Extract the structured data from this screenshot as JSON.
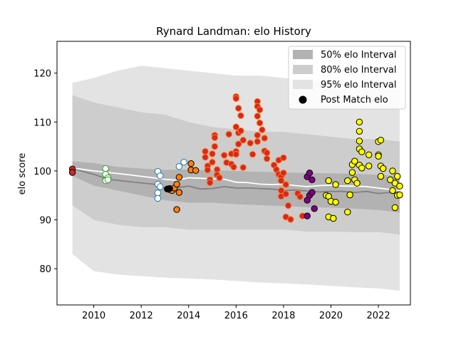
{
  "chart_data": {
    "type": "scatter",
    "title": "Rynard Landman: elo History",
    "xlabel": "",
    "ylabel": "elo score",
    "xlim": [
      2008.45,
      2023.35
    ],
    "ylim": [
      72.6,
      126.5
    ],
    "xticks": [
      2010,
      2012,
      2014,
      2016,
      2018,
      2020,
      2022
    ],
    "yticks": [
      80,
      90,
      100,
      110,
      120
    ],
    "grid": false,
    "legend_position": "top-right",
    "legend": [
      {
        "label": "50% elo Interval",
        "kind": "band",
        "color": "#b2b2b2"
      },
      {
        "label": "80% elo Interval",
        "kind": "band",
        "color": "#cdcdcd"
      },
      {
        "label": "95% elo Interval",
        "kind": "band",
        "color": "#e3e3e3"
      },
      {
        "label": "Post Match elo",
        "kind": "marker",
        "color": "#000000"
      }
    ],
    "colors": {
      "band95": "#e3e3e3",
      "band80": "#cdcdcd",
      "band50": "#b2b2b2",
      "median_line": "#808080",
      "mean_line": "#ffffff"
    },
    "median_line": {
      "x": [
        2009.1,
        2010.0,
        2010.6,
        2011.5,
        2012.5,
        2013.0,
        2013.5,
        2014.0,
        2014.5,
        2015.0,
        2015.5,
        2016.0,
        2016.5,
        2017.0,
        2017.5,
        2018.0,
        2018.5,
        2019.0,
        2019.5,
        2020.0,
        2020.5,
        2021.0,
        2021.5,
        2022.0,
        2022.5,
        2022.9
      ],
      "y": [
        100.5,
        99.3,
        98.3,
        97.8,
        97.3,
        96.5,
        96.6,
        96.9,
        96.3,
        96.4,
        96.8,
        96.5,
        96.5,
        96.4,
        96.3,
        96.0,
        96.1,
        95.9,
        95.7,
        95.8,
        95.8,
        95.6,
        95.8,
        95.4,
        95.6,
        95.3
      ]
    },
    "mean_line": {
      "x": [
        2009.1,
        2010.0,
        2010.6,
        2011.5,
        2012.5,
        2013.0,
        2013.5,
        2014.0,
        2014.5,
        2015.0,
        2015.5,
        2016.0,
        2016.5,
        2017.0,
        2017.5,
        2018.0,
        2018.5,
        2019.0,
        2019.5,
        2020.0,
        2020.5,
        2021.0,
        2021.5,
        2022.0,
        2022.5,
        2022.9
      ],
      "y": [
        100.6,
        100.0,
        99.7,
        99.2,
        98.6,
        98.3,
        98.1,
        98.6,
        98.5,
        98.4,
        98.3,
        97.7,
        97.6,
        97.3,
        97.2,
        97.3,
        97.0,
        96.8,
        97.0,
        97.1,
        96.9,
        96.9,
        96.8,
        96.5,
        96.2,
        96.0
      ]
    },
    "band50": {
      "x": [
        2009.1,
        2010.0,
        2011.0,
        2012.0,
        2013.0,
        2014.0,
        2015.0,
        2016.0,
        2017.0,
        2018.0,
        2019.0,
        2020.0,
        2021.0,
        2022.0,
        2022.9
      ],
      "lower": [
        99.0,
        97.0,
        96.0,
        95.0,
        94.0,
        93.5,
        93.5,
        93.2,
        93.0,
        92.8,
        92.6,
        92.5,
        92.3,
        92.0,
        91.5
      ],
      "upper": [
        102.0,
        101.6,
        100.8,
        100.5,
        100.2,
        100.3,
        100.1,
        100.0,
        99.8,
        99.7,
        99.6,
        99.5,
        99.4,
        99.2,
        99.0
      ]
    },
    "band80": {
      "x": [
        2009.1,
        2010.0,
        2011.0,
        2012.0,
        2013.0,
        2014.0,
        2015.0,
        2016.0,
        2017.0,
        2018.0,
        2019.0,
        2020.0,
        2021.0,
        2022.0,
        2022.9
      ],
      "lower": [
        93.0,
        90.0,
        89.0,
        88.5,
        88.5,
        88.0,
        88.0,
        88.0,
        88.0,
        88.0,
        87.6,
        87.6,
        87.5,
        87.5,
        87.0
      ],
      "upper": [
        115.5,
        114.0,
        113.0,
        112.0,
        111.5,
        110.0,
        109.0,
        108.5,
        108.0,
        108.0,
        107.5,
        107.0,
        106.5,
        106.5,
        106.0
      ]
    },
    "band95": {
      "x": [
        2009.1,
        2010.0,
        2011.0,
        2012.0,
        2013.0,
        2014.0,
        2015.0,
        2016.0,
        2017.0,
        2018.0,
        2019.0,
        2020.0,
        2021.0,
        2022.0,
        2022.9
      ],
      "lower": [
        83.0,
        79.5,
        78.8,
        78.5,
        78.2,
        78.0,
        77.8,
        77.5,
        77.2,
        77.0,
        76.8,
        76.5,
        76.2,
        76.0,
        75.5
      ],
      "upper": [
        118.0,
        119.0,
        120.5,
        121.5,
        121.0,
        120.5,
        120.0,
        119.5,
        119.5,
        119.0,
        118.5,
        118.0,
        117.5,
        117.0,
        116.5
      ]
    },
    "series": [
      {
        "color": "#d62728",
        "edge": "#000000",
        "points": [
          [
            2009.1,
            100.4
          ],
          [
            2009.1,
            99.7
          ]
        ]
      },
      {
        "color": "#ffffff",
        "edge": "#2ca02c",
        "points": [
          [
            2010.5,
            100.5
          ],
          [
            2010.5,
            99.3
          ],
          [
            2010.6,
            98.6
          ],
          [
            2010.5,
            98.0
          ],
          [
            2010.6,
            98.2
          ]
        ]
      },
      {
        "color": "#ffffff",
        "edge": "#1f77b4",
        "points": [
          [
            2012.7,
            99.9
          ],
          [
            2012.8,
            99.0
          ],
          [
            2012.7,
            97.3
          ],
          [
            2012.8,
            96.8
          ],
          [
            2012.7,
            95.5
          ],
          [
            2012.7,
            94.4
          ],
          [
            2013.6,
            100.9
          ],
          [
            2013.8,
            101.8
          ]
        ]
      },
      {
        "color": "#ff7f0e",
        "edge": "#000000",
        "points": [
          [
            2013.2,
            96.2
          ],
          [
            2013.3,
            96.0
          ],
          [
            2013.4,
            96.5
          ],
          [
            2013.5,
            97.3
          ],
          [
            2013.6,
            95.6
          ],
          [
            2013.5,
            92.1
          ],
          [
            2013.6,
            98.7
          ],
          [
            2014.1,
            101.5
          ],
          [
            2014.1,
            100.2
          ],
          [
            2014.3,
            100.1
          ]
        ]
      },
      {
        "color": "#000000",
        "edge": "#000000",
        "points": [
          [
            2013.1,
            96.3
          ],
          [
            2013.2,
            96.4
          ]
        ]
      },
      {
        "color": "#d62728",
        "edge": "#ff7f0e",
        "points": [
          [
            2014.7,
            104.0
          ],
          [
            2014.7,
            102.8
          ],
          [
            2014.8,
            101.0
          ],
          [
            2014.8,
            100.2
          ],
          [
            2014.9,
            98.2
          ],
          [
            2014.9,
            97.6
          ],
          [
            2015.0,
            103.5
          ],
          [
            2015.0,
            101.8
          ],
          [
            2015.1,
            107.3
          ],
          [
            2015.1,
            106.8
          ],
          [
            2015.1,
            105.0
          ],
          [
            2015.2,
            100.3
          ],
          [
            2015.2,
            99.2
          ],
          [
            2015.3,
            98.6
          ],
          [
            2015.5,
            103.2
          ],
          [
            2015.6,
            101.7
          ],
          [
            2015.7,
            107.5
          ],
          [
            2015.8,
            103.5
          ],
          [
            2015.8,
            101.4
          ],
          [
            2015.9,
            100.8
          ],
          [
            2016.0,
            115.2
          ],
          [
            2016.0,
            114.8
          ],
          [
            2016.0,
            109.0
          ],
          [
            2016.0,
            104.0
          ],
          [
            2016.0,
            103.4
          ],
          [
            2016.1,
            112.8
          ],
          [
            2016.1,
            107.8
          ],
          [
            2016.1,
            105.5
          ],
          [
            2016.2,
            111.3
          ],
          [
            2016.2,
            108.2
          ],
          [
            2016.3,
            106.3
          ],
          [
            2016.3,
            100.7
          ],
          [
            2016.6,
            105.7
          ],
          [
            2016.7,
            103.4
          ],
          [
            2016.9,
            114.2
          ],
          [
            2016.9,
            113.2
          ],
          [
            2016.9,
            111.2
          ],
          [
            2016.9,
            107.3
          ],
          [
            2016.9,
            106.0
          ],
          [
            2017.0,
            112.5
          ],
          [
            2017.0,
            109.8
          ],
          [
            2017.1,
            108.4
          ],
          [
            2017.2,
            106.7
          ],
          [
            2017.2,
            104.1
          ],
          [
            2017.3,
            103.7
          ],
          [
            2017.3,
            102.5
          ],
          [
            2017.6,
            101.2
          ],
          [
            2017.7,
            100.3
          ],
          [
            2017.8,
            99.3
          ],
          [
            2017.8,
            102.2
          ],
          [
            2017.9,
            98.9
          ],
          [
            2017.9,
            98.0
          ],
          [
            2017.9,
            96.0
          ],
          [
            2017.9,
            94.8
          ],
          [
            2018.0,
            102.7
          ],
          [
            2018.0,
            99.6
          ],
          [
            2018.1,
            97.2
          ],
          [
            2018.1,
            95.3
          ],
          [
            2018.1,
            90.6
          ],
          [
            2018.2,
            92.9
          ],
          [
            2018.3,
            90.1
          ],
          [
            2018.6,
            95.4
          ],
          [
            2018.7,
            94.7
          ],
          [
            2018.8,
            90.8
          ]
        ]
      },
      {
        "color": "#800080",
        "edge": "#000000",
        "points": [
          [
            2019.0,
            98.8
          ],
          [
            2019.1,
            99.6
          ],
          [
            2019.2,
            98.2
          ],
          [
            2019.1,
            95.0
          ],
          [
            2019.2,
            95.6
          ],
          [
            2019.0,
            94.0
          ],
          [
            2019.3,
            92.3
          ],
          [
            2019.0,
            90.8
          ]
        ]
      },
      {
        "color": "#ffff00",
        "edge": "#000000",
        "points": [
          [
            2019.8,
            95.0
          ],
          [
            2019.9,
            98.0
          ],
          [
            2019.9,
            94.8
          ],
          [
            2020.0,
            93.8
          ],
          [
            2019.9,
            90.6
          ],
          [
            2020.1,
            90.3
          ],
          [
            2020.2,
            93.6
          ],
          [
            2020.2,
            97.2
          ],
          [
            2020.7,
            98.0
          ],
          [
            2020.8,
            95.1
          ],
          [
            2020.7,
            91.6
          ],
          [
            2020.9,
            101.3
          ],
          [
            2020.9,
            99.7
          ],
          [
            2021.0,
            102.0
          ],
          [
            2021.0,
            98.2
          ],
          [
            2021.1,
            97.5
          ],
          [
            2021.2,
            110.0
          ],
          [
            2021.2,
            108.1
          ],
          [
            2021.2,
            106.1
          ],
          [
            2021.2,
            104.5
          ],
          [
            2021.3,
            103.9
          ],
          [
            2021.2,
            101.2
          ],
          [
            2021.3,
            100.6
          ],
          [
            2021.6,
            103.3
          ],
          [
            2021.6,
            101.0
          ],
          [
            2022.0,
            106.0
          ],
          [
            2022.1,
            106.3
          ],
          [
            2022.0,
            103.3
          ],
          [
            2022.0,
            103.0
          ],
          [
            2022.1,
            101.0
          ],
          [
            2022.1,
            98.9
          ],
          [
            2022.2,
            100.5
          ],
          [
            2022.5,
            98.2
          ],
          [
            2022.6,
            100.0
          ],
          [
            2022.7,
            97.5
          ],
          [
            2022.8,
            98.9
          ],
          [
            2022.9,
            96.9
          ],
          [
            2022.6,
            96.0
          ],
          [
            2022.8,
            95.0
          ],
          [
            2022.9,
            95.1
          ],
          [
            2022.7,
            92.5
          ]
        ]
      }
    ]
  }
}
